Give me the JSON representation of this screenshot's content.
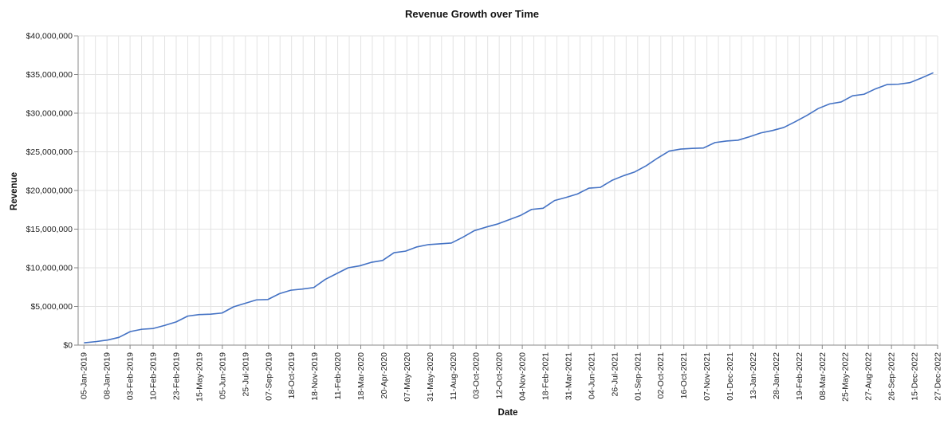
{
  "chart_data": {
    "type": "line",
    "title": "Revenue Growth over Time",
    "xlabel": "Date",
    "ylabel": "Revenue",
    "ylim": [
      0,
      40000000
    ],
    "y_ticks": [
      {
        "value": 0,
        "label": "$0"
      },
      {
        "value": 5000000,
        "label": "$5,000,000"
      },
      {
        "value": 10000000,
        "label": "$10,000,000"
      },
      {
        "value": 15000000,
        "label": "$15,000,000"
      },
      {
        "value": 20000000,
        "label": "$20,000,000"
      },
      {
        "value": 25000000,
        "label": "$25,000,000"
      },
      {
        "value": 30000000,
        "label": "$30,000,000"
      },
      {
        "value": 35000000,
        "label": "$35,000,000"
      },
      {
        "value": 40000000,
        "label": "$40,000,000"
      }
    ],
    "x_tick_labels": [
      "05-Jan-2019",
      "08-Jan-2019",
      "03-Feb-2019",
      "10-Feb-2019",
      "23-Feb-2019",
      "15-May-2019",
      "05-Jun-2019",
      "25-Jul-2019",
      "07-Sep-2019",
      "18-Oct-2019",
      "18-Nov-2019",
      "11-Feb-2020",
      "18-Mar-2020",
      "20-Apr-2020",
      "07-May-2020",
      "31-May-2020",
      "11-Aug-2020",
      "03-Oct-2020",
      "12-Oct-2020",
      "04-Nov-2020",
      "18-Feb-2021",
      "31-Mar-2021",
      "04-Jun-2021",
      "26-Jul-2021",
      "01-Sep-2021",
      "02-Oct-2021",
      "16-Oct-2021",
      "07-Nov-2021",
      "01-Dec-2021",
      "13-Jan-2022",
      "28-Jan-2022",
      "19-Feb-2022",
      "08-Mar-2022",
      "25-May-2022",
      "27-Aug-2022",
      "26-Sep-2022",
      "15-Dec-2022",
      "27-Dec-2022"
    ],
    "grid": true,
    "color": "#4472c4",
    "series": [
      {
        "values": [
          300000,
          450000,
          650000,
          1000000,
          1750000,
          2050000,
          2150000,
          2550000,
          3000000,
          3750000,
          3950000,
          4000000,
          4150000,
          4950000,
          5400000,
          5850000,
          5900000,
          6650000,
          7100000,
          7250000,
          7450000,
          8500000,
          9250000,
          10000000,
          10250000,
          10700000,
          10950000,
          11950000,
          12150000,
          12700000,
          13000000,
          13100000,
          13200000,
          13950000,
          14800000,
          15250000,
          15650000,
          16200000,
          16750000,
          17550000,
          17700000,
          18700000,
          19100000,
          19550000,
          20300000,
          20400000,
          21300000,
          21900000,
          22400000,
          23200000,
          24200000,
          25100000,
          25350000,
          25450000,
          25500000,
          26200000,
          26400000,
          26500000,
          26950000,
          27450000,
          27750000,
          28150000,
          28900000,
          29700000,
          30600000,
          31200000,
          31450000,
          32250000,
          32450000,
          33150000,
          33700000,
          33750000,
          33950000,
          34550000,
          35200000
        ]
      }
    ]
  }
}
